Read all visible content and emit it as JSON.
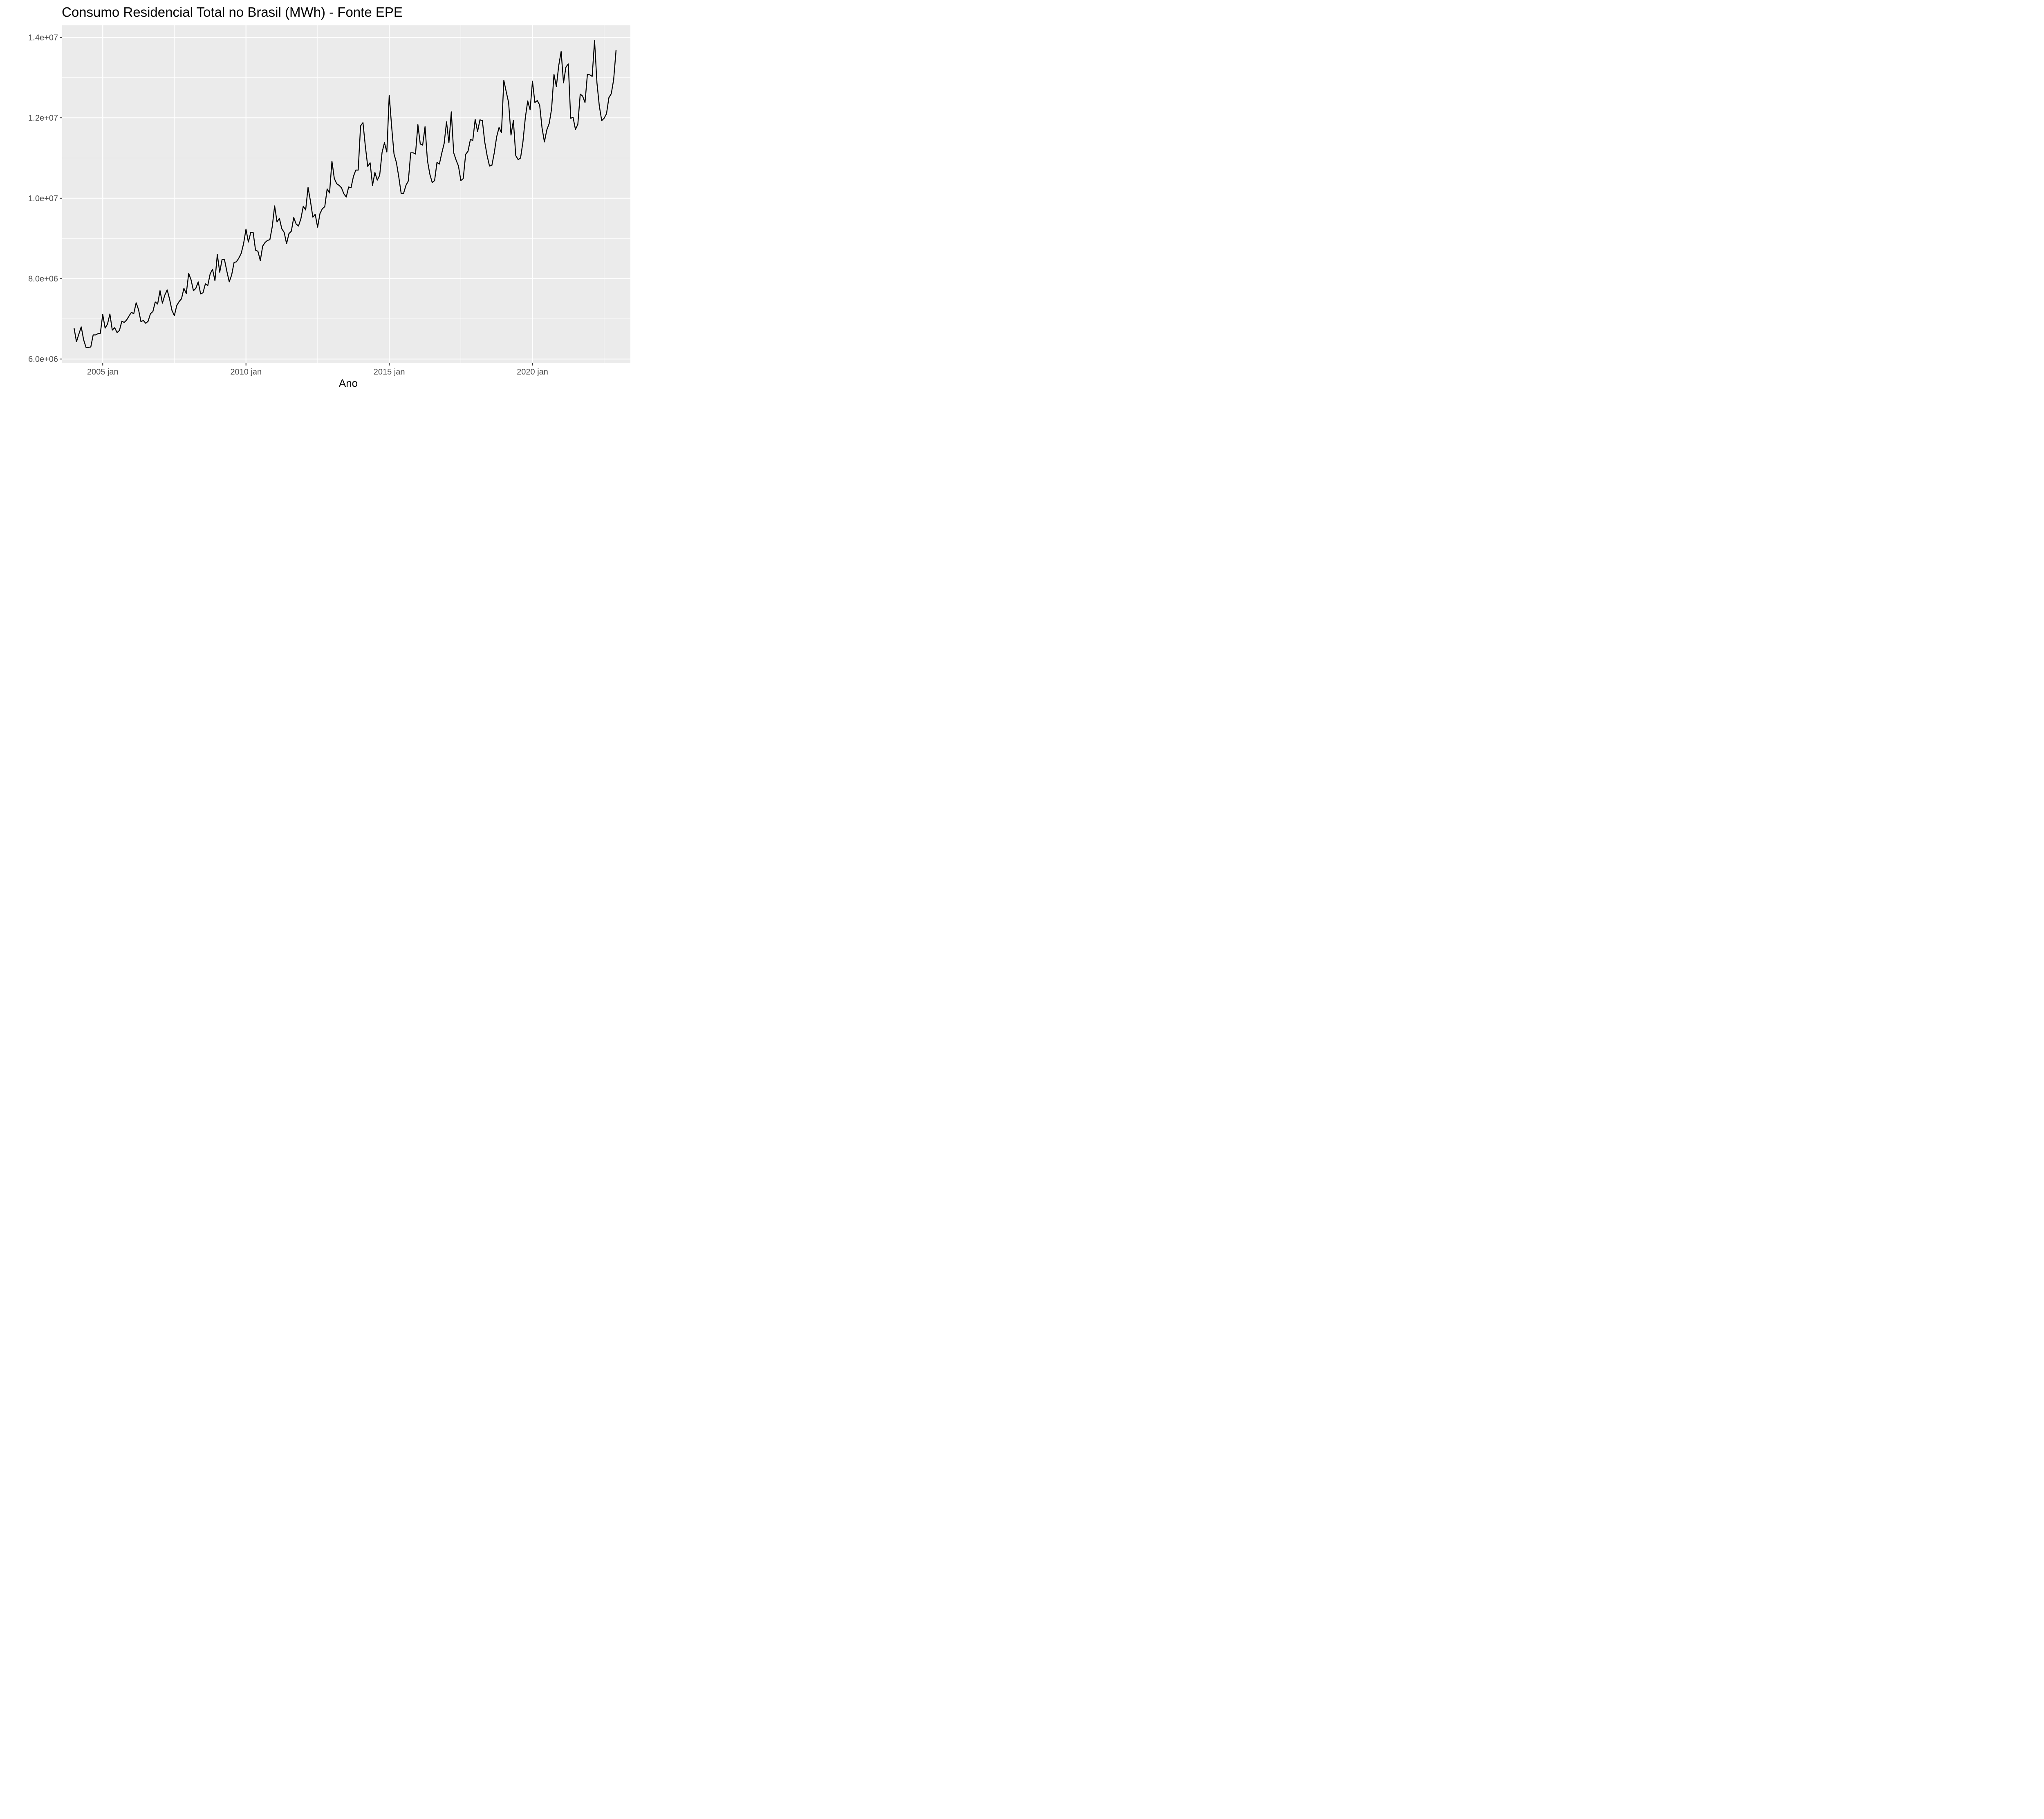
{
  "chart_data": {
    "type": "line",
    "title": "Consumo Residencial Total no Brasil (MWh) - Fonte EPE",
    "xlabel": "Ano",
    "ylabel": "",
    "x_start": "2004 jan",
    "x_frequency": "monthly",
    "xlim": [
      "2003 ago",
      "2023 jun"
    ],
    "ylim": [
      5900000,
      14300000
    ],
    "x_ticks": [
      "2005 jan",
      "2010 jan",
      "2015 jan",
      "2020 jan"
    ],
    "y_ticks": [
      "6.0e+06",
      "8.0e+06",
      "1.0e+07",
      "1.2e+07",
      "1.4e+07"
    ],
    "grid": true,
    "legend": "none",
    "line_color": "#000000",
    "panel_background": "#ebebeb",
    "series": [
      {
        "values": [
          6770000,
          6430000,
          6620000,
          6800000,
          6480000,
          6290000,
          6290000,
          6300000,
          6600000,
          6600000,
          6630000,
          6640000,
          7110000,
          6770000,
          6870000,
          7120000,
          6720000,
          6780000,
          6660000,
          6710000,
          6940000,
          6910000,
          6970000,
          7070000,
          7160000,
          7130000,
          7400000,
          7230000,
          6930000,
          6960000,
          6890000,
          6940000,
          7130000,
          7180000,
          7420000,
          7370000,
          7700000,
          7390000,
          7590000,
          7720000,
          7490000,
          7210000,
          7080000,
          7330000,
          7430000,
          7500000,
          7760000,
          7630000,
          8130000,
          7970000,
          7700000,
          7760000,
          7920000,
          7620000,
          7650000,
          7870000,
          7830000,
          8120000,
          8230000,
          7950000,
          8600000,
          8160000,
          8480000,
          8470000,
          8180000,
          7920000,
          8090000,
          8400000,
          8420000,
          8510000,
          8630000,
          8870000,
          9230000,
          8910000,
          9150000,
          9150000,
          8710000,
          8680000,
          8450000,
          8810000,
          8900000,
          8950000,
          8970000,
          9290000,
          9810000,
          9410000,
          9500000,
          9240000,
          9150000,
          8870000,
          9120000,
          9180000,
          9520000,
          9360000,
          9310000,
          9490000,
          9800000,
          9710000,
          10270000,
          9930000,
          9530000,
          9600000,
          9280000,
          9620000,
          9740000,
          9790000,
          10230000,
          10130000,
          10920000,
          10490000,
          10360000,
          10320000,
          10260000,
          10110000,
          10030000,
          10280000,
          10260000,
          10540000,
          10700000,
          10700000,
          11800000,
          11880000,
          11290000,
          10790000,
          10880000,
          10320000,
          10640000,
          10450000,
          10570000,
          11140000,
          11380000,
          11150000,
          12560000,
          11790000,
          11100000,
          10890000,
          10530000,
          10120000,
          10120000,
          10320000,
          10430000,
          11130000,
          11130000,
          11100000,
          11830000,
          11350000,
          11320000,
          11780000,
          10940000,
          10600000,
          10390000,
          10440000,
          10890000,
          10850000,
          11120000,
          11360000,
          11900000,
          11380000,
          12150000,
          11130000,
          10950000,
          10800000,
          10440000,
          10490000,
          11090000,
          11170000,
          11460000,
          11440000,
          11960000,
          11660000,
          11950000,
          11930000,
          11400000,
          11060000,
          10800000,
          10820000,
          11130000,
          11530000,
          11760000,
          11630000,
          12930000,
          12650000,
          12380000,
          11570000,
          11930000,
          11060000,
          10960000,
          11000000,
          11400000,
          12000000,
          12420000,
          12200000,
          12910000,
          12380000,
          12430000,
          12320000,
          11750000,
          11400000,
          11700000,
          11860000,
          12220000,
          13080000,
          12780000,
          13300000,
          13650000,
          12870000,
          13260000,
          13340000,
          11990000,
          12010000,
          11710000,
          11840000,
          12590000,
          12540000,
          12380000,
          13080000,
          13070000,
          13030000,
          13920000,
          12870000,
          12290000,
          11930000,
          11990000,
          12100000,
          12500000,
          12600000,
          12950000,
          13680000
        ]
      }
    ]
  }
}
